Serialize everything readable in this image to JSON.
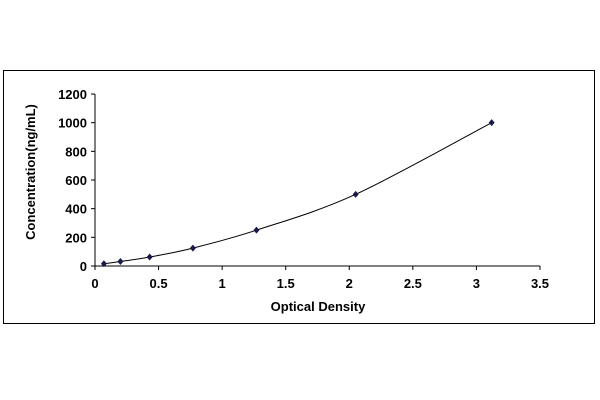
{
  "chart_data": {
    "type": "scatter",
    "title": "",
    "xlabel": "Optical Density",
    "ylabel": "Concentration(ng/mL)",
    "xlim": [
      0,
      3.5
    ],
    "ylim": [
      0,
      1200
    ],
    "xticks": [
      "0",
      "0.5",
      "1",
      "1.5",
      "2",
      "2.5",
      "3",
      "3.5"
    ],
    "yticks": [
      "0",
      "200",
      "400",
      "600",
      "800",
      "1000",
      "1200"
    ],
    "grid": false,
    "legend": "none",
    "trendline": "smooth curve through points",
    "marker_color": "#1a1a4a",
    "series": [
      {
        "x": [
          0.07,
          0.2,
          0.43,
          0.77,
          1.27,
          2.05,
          3.12
        ],
        "y": [
          15.6,
          31.25,
          62.5,
          125,
          250,
          500,
          1000
        ]
      }
    ]
  }
}
